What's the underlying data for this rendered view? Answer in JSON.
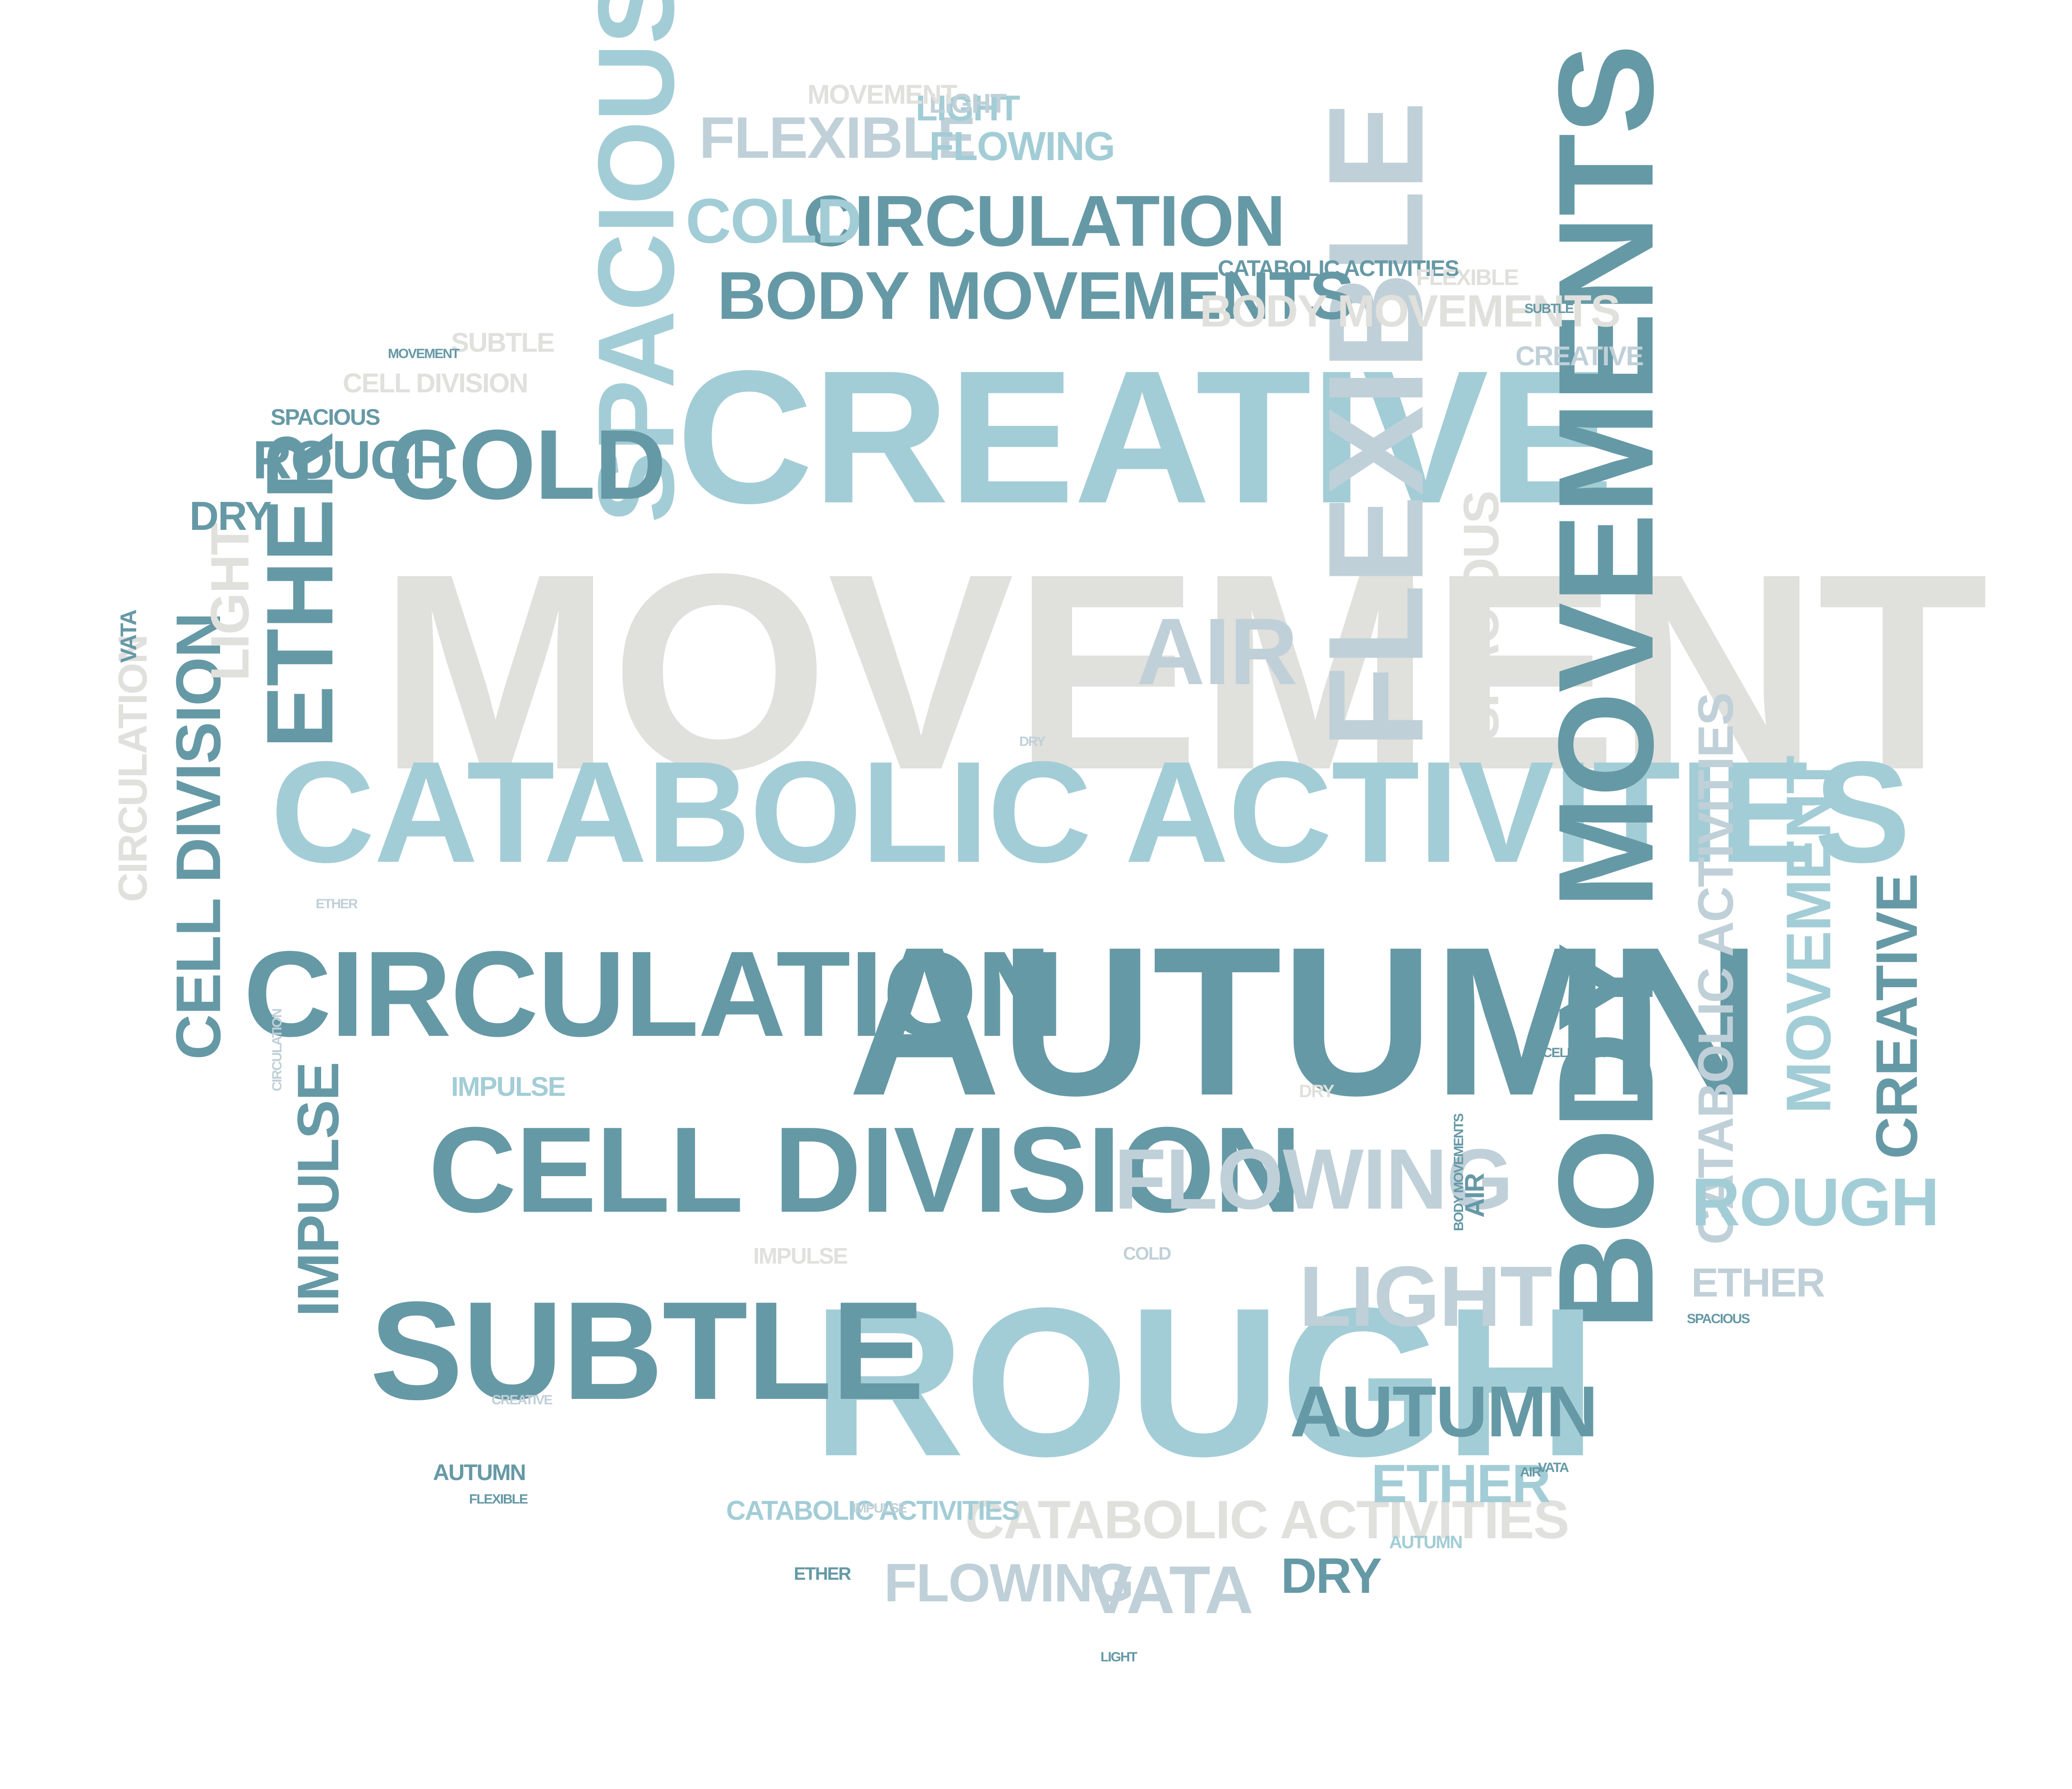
{
  "palette": {
    "dark": "#6699A6",
    "medium": "#A3CDD6",
    "light": "#C0D0D8",
    "pale": "#E0E0DC"
  },
  "words": [
    {
      "text": "MOVEMENT",
      "tone": "pale",
      "size": 620
    },
    {
      "text": "CREATIVE",
      "tone": "medium",
      "size": 420
    },
    {
      "text": "AUTUMN",
      "tone": "dark",
      "size": 470
    },
    {
      "text": "CATABOLIC ACTIVITIES",
      "tone": "medium",
      "size": 320
    },
    {
      "text": "BODY MOVEMENTS",
      "tone": "dark",
      "size": 300
    },
    {
      "text": "ROUGH",
      "tone": "medium",
      "size": 470
    },
    {
      "text": "CIRCULATION",
      "tone": "dark",
      "size": 270
    },
    {
      "text": "CELL DIVISION",
      "tone": "dark",
      "size": 270
    },
    {
      "text": "SUBTLE",
      "tone": "dark",
      "size": 310
    },
    {
      "text": "FLEXIBLE",
      "tone": "light",
      "size": 300
    },
    {
      "text": "SPACIOUS",
      "tone": "medium",
      "size": 240
    },
    {
      "text": "ETHER",
      "tone": "dark",
      "size": 210
    },
    {
      "text": "COLD",
      "tone": "dark",
      "size": 220
    },
    {
      "text": "AIR",
      "tone": "light",
      "size": 210
    },
    {
      "text": "FLOWING",
      "tone": "light",
      "size": 190
    },
    {
      "text": "LIGHT",
      "tone": "light",
      "size": 190
    },
    {
      "text": "AUTUMN",
      "tone": "dark",
      "size": 160
    },
    {
      "text": "CIRCULATION",
      "tone": "dark",
      "size": 160
    },
    {
      "text": "BODY MOVEMENTS",
      "tone": "dark",
      "size": 150
    },
    {
      "text": "FLEXIBLE",
      "tone": "light",
      "size": 130
    },
    {
      "text": "COLD",
      "tone": "medium",
      "size": 140
    },
    {
      "text": "CELL DIVISION",
      "tone": "dark",
      "size": 140
    },
    {
      "text": "IMPULSE",
      "tone": "dark",
      "size": 130
    },
    {
      "text": "VATA",
      "tone": "light",
      "size": 150
    },
    {
      "text": "ROUGH",
      "tone": "dark",
      "size": 120
    },
    {
      "text": "CATABOLIC ACTIVITIES",
      "tone": "light",
      "size": 110
    },
    {
      "text": "MOVEMENT",
      "tone": "medium",
      "size": 140
    },
    {
      "text": "CREATIVE",
      "tone": "dark",
      "size": 130
    },
    {
      "text": "ROUGH",
      "tone": "medium",
      "size": 150
    },
    {
      "text": "CATABOLIC ACTIVITIES",
      "tone": "pale",
      "size": 120
    },
    {
      "text": "SPACIOUS",
      "tone": "pale",
      "size": 110
    },
    {
      "text": "LIGHT",
      "tone": "pale",
      "size": 120
    },
    {
      "text": "FLOWING",
      "tone": "light",
      "size": 120
    },
    {
      "text": "BODY MOVEMENTS",
      "tone": "pale",
      "size": 100
    },
    {
      "text": "DRY",
      "tone": "dark",
      "size": 110
    },
    {
      "text": "ETHER",
      "tone": "medium",
      "size": 120
    },
    {
      "text": "FLOWING",
      "tone": "medium",
      "size": 90
    },
    {
      "text": "DRY",
      "tone": "dark",
      "size": 90
    },
    {
      "text": "LIGHT",
      "tone": "medium",
      "size": 80
    },
    {
      "text": "ETHER",
      "tone": "light",
      "size": 90
    },
    {
      "text": "CATABOLIC ACTIVITIES",
      "tone": "medium",
      "size": 60
    },
    {
      "text": "CATABOLIC ACTIVITIES",
      "tone": "dark",
      "size": 50
    },
    {
      "text": "CREATIVE",
      "tone": "light",
      "size": 60
    },
    {
      "text": "IMPULSE",
      "tone": "medium",
      "size": 60
    },
    {
      "text": "AIR",
      "tone": "dark",
      "size": 60
    },
    {
      "text": "CIRCULATION",
      "tone": "pale",
      "size": 90
    },
    {
      "text": "CELL DIVISION",
      "tone": "pale",
      "size": 60
    },
    {
      "text": "VATA",
      "tone": "dark",
      "size": 50
    },
    {
      "text": "LIGHT",
      "tone": "light",
      "size": 60
    },
    {
      "text": "AUTUMN",
      "tone": "dark",
      "size": 50
    },
    {
      "text": "SPACIOUS",
      "tone": "dark",
      "size": 50
    },
    {
      "text": "MOVEMENT",
      "tone": "pale",
      "size": 60
    },
    {
      "text": "FLEXIBLE",
      "tone": "pale",
      "size": 50
    },
    {
      "text": "SUBTLE",
      "tone": "pale",
      "size": 60
    },
    {
      "text": "MOVEMENT",
      "tone": "dark",
      "size": 30
    },
    {
      "text": "IMPULSE",
      "tone": "pale",
      "size": 50
    },
    {
      "text": "ETHER",
      "tone": "dark",
      "size": 40
    },
    {
      "text": "LIGHT",
      "tone": "dark",
      "size": 30
    },
    {
      "text": "AUTUMN",
      "tone": "medium",
      "size": 40
    },
    {
      "text": "COLD",
      "tone": "light",
      "size": 40
    },
    {
      "text": "DRY",
      "tone": "pale",
      "size": 40
    },
    {
      "text": "FLEXIBLE",
      "tone": "dark",
      "size": 30
    },
    {
      "text": "SUBTLE",
      "tone": "dark",
      "size": 30
    },
    {
      "text": "CELL DIVISION",
      "tone": "dark",
      "size": 30
    },
    {
      "text": "SPACIOUS",
      "tone": "dark",
      "size": 30
    },
    {
      "text": "BODY MOVEMENTS",
      "tone": "dark",
      "size": 30
    },
    {
      "text": "AIR",
      "tone": "dark",
      "size": 30
    },
    {
      "text": "VATA",
      "tone": "dark",
      "size": 30
    },
    {
      "text": "CREATIVE",
      "tone": "light",
      "size": 30
    },
    {
      "text": "CIRCULATION",
      "tone": "light",
      "size": 30
    },
    {
      "text": "ETHER",
      "tone": "light",
      "size": 30
    },
    {
      "text": "DRY",
      "tone": "light",
      "size": 30
    },
    {
      "text": "IMPULSE",
      "tone": "light",
      "size": 30
    }
  ]
}
